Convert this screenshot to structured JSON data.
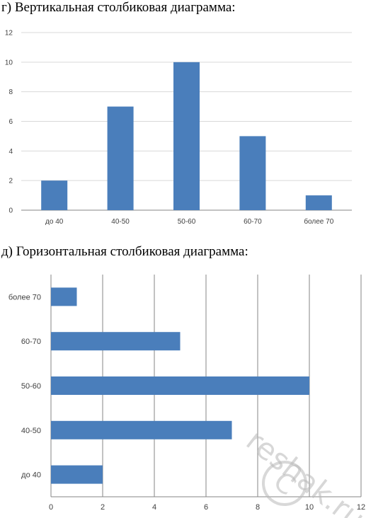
{
  "chart_data": [
    {
      "type": "bar",
      "orientation": "vertical",
      "title": "г) Вертикальная столбиковая диаграмма:",
      "categories": [
        "до 40",
        "40-50",
        "50-60",
        "60-70",
        "более 70"
      ],
      "values": [
        2,
        7,
        10,
        5,
        1
      ],
      "y_ticks": [
        "0",
        "2",
        "4",
        "6",
        "8",
        "10",
        "12"
      ],
      "ylim": [
        0,
        12
      ],
      "grid": "horizontal",
      "bar_color": "#4a7ebb"
    },
    {
      "type": "bar",
      "orientation": "horizontal",
      "title": "д) Горизонтальная столбиковая диаграмма:",
      "categories": [
        "до 40",
        "40-50",
        "50-60",
        "60-70",
        "более 70"
      ],
      "values": [
        2,
        7,
        10,
        5,
        1
      ],
      "x_ticks": [
        "0",
        "2",
        "4",
        "6",
        "8",
        "10",
        "12"
      ],
      "xlim": [
        0,
        12
      ],
      "grid": "vertical",
      "bar_color": "#4a7ebb"
    }
  ],
  "watermark": "reshak.ru"
}
